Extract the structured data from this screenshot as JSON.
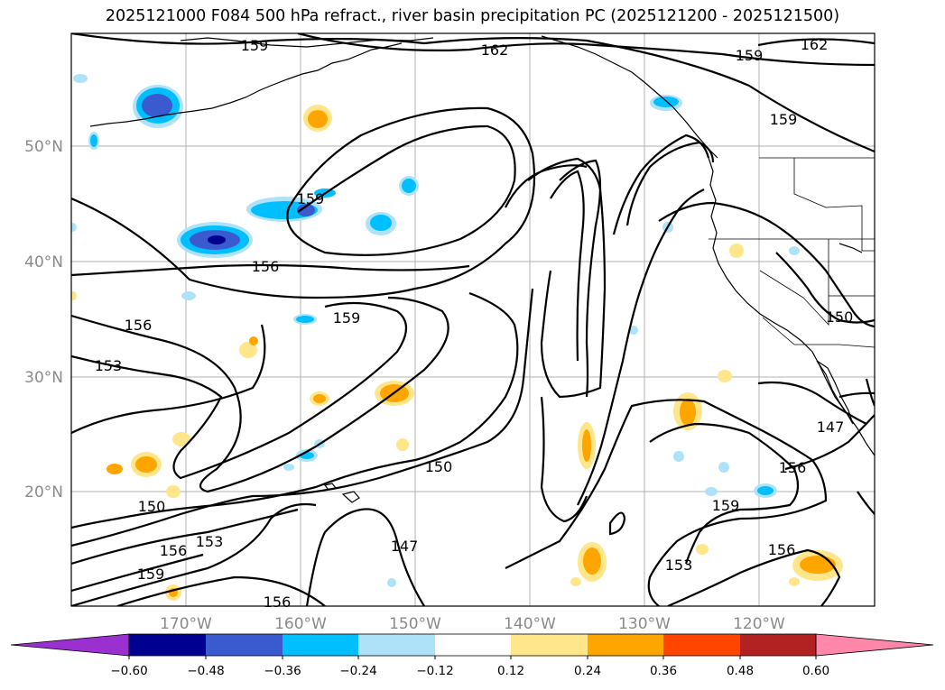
{
  "title": "2025121000 F084 500 hPa refract., river basin precipitation PC (2025121200 - 2025121500)",
  "axes": {
    "lat_labels": [
      "50°N",
      "40°N",
      "30°N",
      "20°N"
    ],
    "lon_labels": [
      "170°W",
      "160°W",
      "150°W",
      "140°W",
      "130°W",
      "120°W"
    ]
  },
  "contour_labels": [
    "159",
    "162",
    "159",
    "162",
    "159",
    "159",
    "156",
    "156",
    "153",
    "159",
    "150",
    "150",
    "150",
    "147",
    "156",
    "153",
    "156",
    "159",
    "147",
    "153",
    "156",
    "159",
    "156"
  ],
  "colorbar": {
    "tick_labels": [
      "−0.60",
      "−0.48",
      "−0.36",
      "−0.24",
      "−0.12",
      "0.12",
      "0.24",
      "0.36",
      "0.48",
      "0.60"
    ],
    "colors": [
      "#9b30d0",
      "#000090",
      "#3a5bd0",
      "#00bfff",
      "#aee2f8",
      "#ffffff",
      "#ffe68a",
      "#ffa500",
      "#ff4500",
      "#b22222",
      "#ff88aa"
    ]
  }
}
